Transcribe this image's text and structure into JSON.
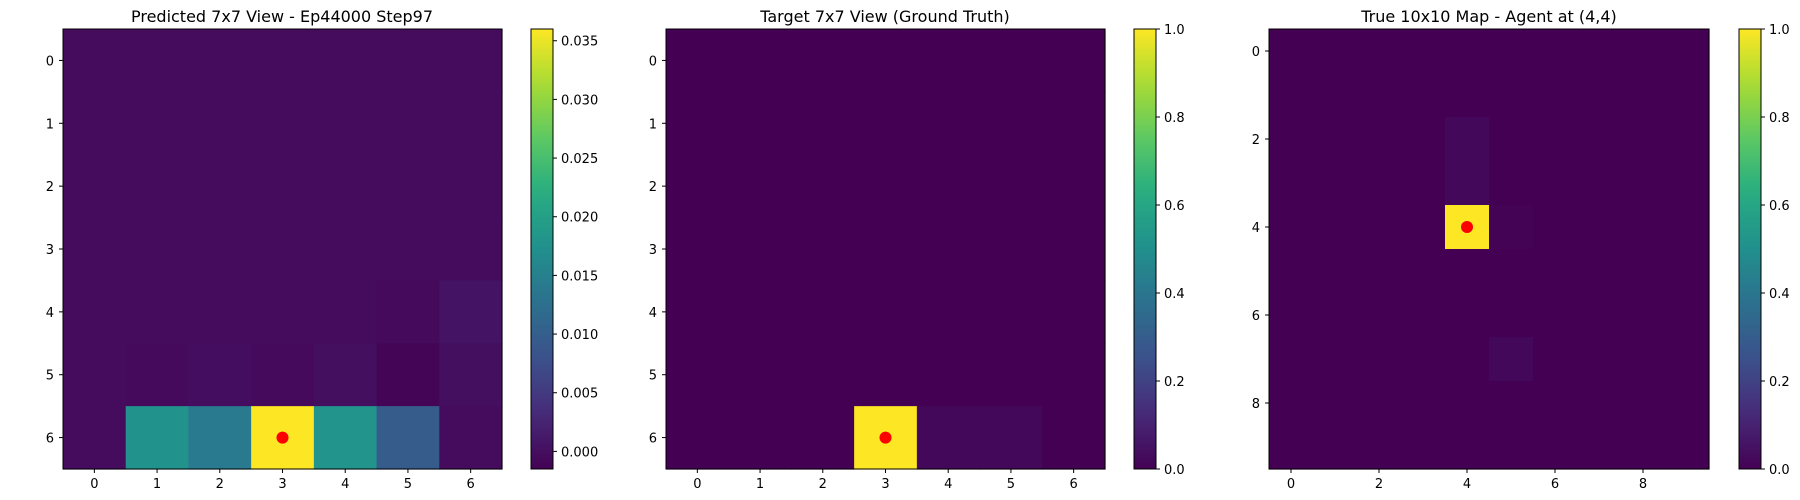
{
  "chart_data": [
    {
      "type": "heatmap",
      "title": "Predicted 7x7 View - Ep44000 Step97",
      "grid_size": 7,
      "colormap": "viridis",
      "x_ticks": [
        0,
        1,
        2,
        3,
        4,
        5,
        6
      ],
      "y_ticks": [
        0,
        1,
        2,
        3,
        4,
        5,
        6
      ],
      "values": [
        [
          -0.0002,
          -0.0002,
          -0.0002,
          -0.0002,
          -0.0002,
          -0.0002,
          -0.0002
        ],
        [
          -0.0002,
          -0.0002,
          -0.0002,
          -0.0002,
          -0.0002,
          -0.0002,
          -0.0002
        ],
        [
          -0.0002,
          -0.0002,
          -0.0002,
          -0.0002,
          -0.0002,
          -0.0002,
          -0.0002
        ],
        [
          -0.0002,
          -0.0002,
          -0.0002,
          -0.0002,
          -0.0002,
          -0.0002,
          -0.0002
        ],
        [
          -0.0002,
          -0.0002,
          -0.0002,
          -0.0002,
          -0.0002,
          -0.0005,
          0.0005
        ],
        [
          -0.0002,
          -0.0005,
          -0.0001,
          -0.0005,
          0.0001,
          -0.0011,
          0.0001
        ],
        [
          -0.0002,
          0.0178,
          0.014,
          0.036,
          0.018,
          0.0095,
          -0.0004
        ]
      ],
      "marker": {
        "row": 6,
        "col": 3,
        "color": "#ff0000"
      },
      "colorbar": {
        "min": -0.0015,
        "max": 0.036,
        "ticks": [
          0.0,
          0.005,
          0.01,
          0.015,
          0.02,
          0.025,
          0.03,
          0.035
        ],
        "tick_labels": [
          "0.000",
          "0.005",
          "0.010",
          "0.015",
          "0.020",
          "0.025",
          "0.030",
          "0.035"
        ]
      }
    },
    {
      "type": "heatmap",
      "title": "Target 7x7 View (Ground Truth)",
      "grid_size": 7,
      "colormap": "viridis",
      "x_ticks": [
        0,
        1,
        2,
        3,
        4,
        5,
        6
      ],
      "y_ticks": [
        0,
        1,
        2,
        3,
        4,
        5,
        6
      ],
      "values": [
        [
          0,
          0,
          0,
          0,
          0,
          0,
          0
        ],
        [
          0,
          0,
          0,
          0,
          0,
          0,
          0
        ],
        [
          0,
          0,
          0,
          0,
          0,
          0,
          0
        ],
        [
          0,
          0,
          0,
          0,
          0,
          0,
          0
        ],
        [
          0,
          0,
          0,
          0,
          0,
          0,
          0
        ],
        [
          0,
          0,
          0,
          0,
          0,
          0,
          0
        ],
        [
          0,
          0,
          0,
          1.0,
          0.02,
          0.02,
          0
        ]
      ],
      "marker": {
        "row": 6,
        "col": 3,
        "color": "#ff0000"
      },
      "colorbar": {
        "min": 0.0,
        "max": 1.0,
        "ticks": [
          0.0,
          0.2,
          0.4,
          0.6,
          0.8,
          1.0
        ],
        "tick_labels": [
          "0.0",
          "0.2",
          "0.4",
          "0.6",
          "0.8",
          "1.0"
        ]
      }
    },
    {
      "type": "heatmap",
      "title": "True 10x10 Map - Agent at (4,4)",
      "grid_size": 10,
      "colormap": "viridis",
      "x_ticks": [
        0,
        2,
        4,
        6,
        8
      ],
      "y_ticks": [
        0,
        2,
        4,
        6,
        8
      ],
      "values": [
        [
          0,
          0,
          0,
          0,
          0,
          0,
          0,
          0,
          0,
          0
        ],
        [
          0,
          0,
          0,
          0,
          0,
          0,
          0,
          0,
          0,
          0
        ],
        [
          0,
          0,
          0,
          0,
          0.02,
          0,
          0,
          0,
          0,
          0
        ],
        [
          0,
          0,
          0,
          0,
          0.02,
          0,
          0,
          0,
          0,
          0
        ],
        [
          0,
          0,
          0,
          0,
          1.0,
          0.005,
          0,
          0,
          0,
          0
        ],
        [
          0,
          0,
          0,
          0,
          0,
          0,
          0,
          0,
          0,
          0
        ],
        [
          0,
          0,
          0,
          0,
          0,
          0,
          0,
          0,
          0,
          0
        ],
        [
          0,
          0,
          0,
          0,
          0,
          0.02,
          0,
          0,
          0,
          0
        ],
        [
          0,
          0,
          0,
          0,
          0,
          0,
          0,
          0,
          0,
          0
        ],
        [
          0,
          0,
          0,
          0,
          0,
          0,
          0,
          0,
          0,
          0
        ]
      ],
      "marker": {
        "row": 4,
        "col": 4,
        "color": "#ff0000"
      },
      "colorbar": {
        "min": 0.0,
        "max": 1.0,
        "ticks": [
          0.0,
          0.2,
          0.4,
          0.6,
          0.8,
          1.0
        ],
        "tick_labels": [
          "0.0",
          "0.2",
          "0.4",
          "0.6",
          "0.8",
          "1.0"
        ]
      }
    }
  ]
}
